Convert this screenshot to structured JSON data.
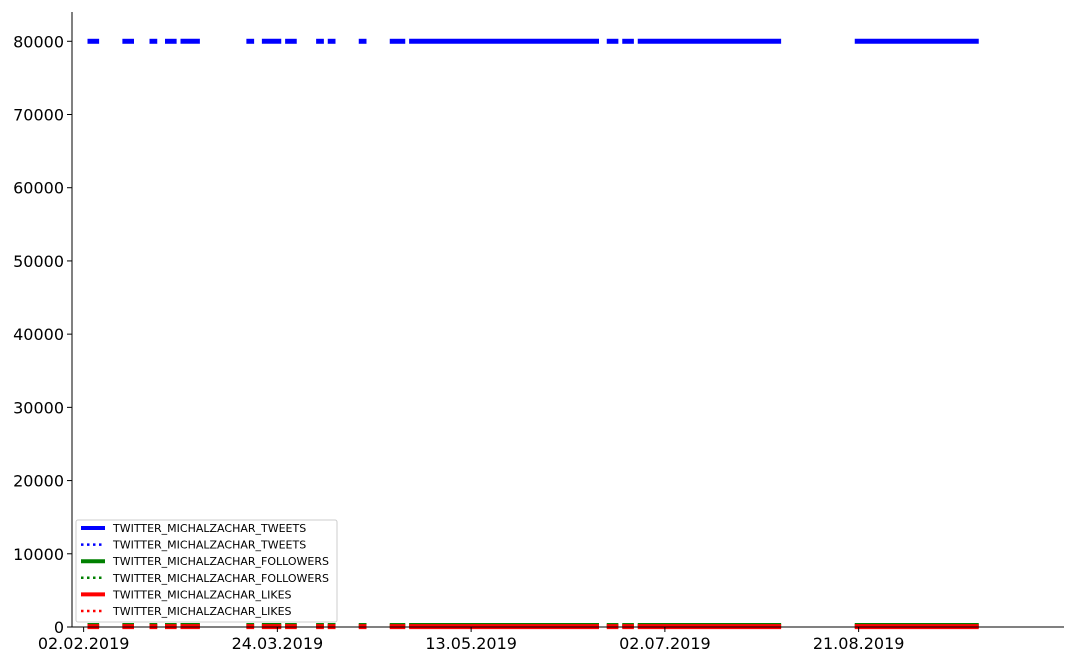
{
  "chart_data": {
    "type": "line",
    "title": "",
    "xlabel": "",
    "ylabel": "",
    "x_axis": {
      "type": "date",
      "range": [
        "2019-01-30",
        "2019-10-13"
      ],
      "ticks": [
        "2019-02-02",
        "2019-03-24",
        "2019-05-13",
        "2019-07-02",
        "2019-08-21"
      ],
      "tick_labels": [
        "02.02.2019",
        "24.03.2019",
        "13.05.2019",
        "02.07.2019",
        "21.08.2019"
      ]
    },
    "y_axis": {
      "range": [
        0,
        84000
      ],
      "ticks": [
        0,
        10000,
        20000,
        30000,
        40000,
        50000,
        60000,
        70000,
        80000
      ],
      "tick_labels": [
        "0",
        "10000",
        "20000",
        "30000",
        "40000",
        "50000",
        "60000",
        "70000",
        "80000"
      ]
    },
    "grid": false,
    "legend": {
      "placement": "lower-left",
      "entries": [
        {
          "label": "TWITTER_MICHALZACHAR_TWEETS",
          "color": "#0000ff",
          "style": "solid"
        },
        {
          "label": "TWITTER_MICHALZACHAR_TWEETS",
          "color": "#0000ff",
          "style": "dotted"
        },
        {
          "label": "TWITTER_MICHALZACHAR_FOLLOWERS",
          "color": "#008000",
          "style": "solid"
        },
        {
          "label": "TWITTER_MICHALZACHAR_FOLLOWERS",
          "color": "#008000",
          "style": "dotted"
        },
        {
          "label": "TWITTER_MICHALZACHAR_LIKES",
          "color": "#ff0000",
          "style": "solid"
        },
        {
          "label": "TWITTER_MICHALZACHAR_LIKES",
          "color": "#ff0000",
          "style": "dotted"
        }
      ]
    },
    "series": [
      {
        "name": "TWITTER_MICHALZACHAR_TWEETS",
        "color": "#0000ff",
        "style": "solid",
        "value": 80000,
        "segments": [
          [
            "2019-02-03",
            "2019-02-06"
          ],
          [
            "2019-02-12",
            "2019-02-15"
          ],
          [
            "2019-02-19",
            "2019-02-21"
          ],
          [
            "2019-02-23",
            "2019-02-26"
          ],
          [
            "2019-02-27",
            "2019-03-04"
          ],
          [
            "2019-03-16",
            "2019-03-18"
          ],
          [
            "2019-03-20",
            "2019-03-25"
          ],
          [
            "2019-03-26",
            "2019-03-29"
          ],
          [
            "2019-04-03",
            "2019-04-05"
          ],
          [
            "2019-04-06",
            "2019-04-08"
          ],
          [
            "2019-04-14",
            "2019-04-16"
          ],
          [
            "2019-04-22",
            "2019-04-26"
          ],
          [
            "2019-04-27",
            "2019-06-15"
          ],
          [
            "2019-06-17",
            "2019-06-20"
          ],
          [
            "2019-06-21",
            "2019-06-24"
          ],
          [
            "2019-06-25",
            "2019-08-01"
          ],
          [
            "2019-08-20",
            "2019-09-21"
          ]
        ]
      },
      {
        "name": "TWITTER_MICHALZACHAR_FOLLOWERS",
        "color": "#008000",
        "style": "solid",
        "value": 200,
        "segments": [
          [
            "2019-02-03",
            "2019-02-06"
          ],
          [
            "2019-02-12",
            "2019-02-15"
          ],
          [
            "2019-02-19",
            "2019-02-21"
          ],
          [
            "2019-02-23",
            "2019-02-26"
          ],
          [
            "2019-02-27",
            "2019-03-04"
          ],
          [
            "2019-03-16",
            "2019-03-18"
          ],
          [
            "2019-03-20",
            "2019-03-25"
          ],
          [
            "2019-03-26",
            "2019-03-29"
          ],
          [
            "2019-04-03",
            "2019-04-05"
          ],
          [
            "2019-04-06",
            "2019-04-08"
          ],
          [
            "2019-04-14",
            "2019-04-16"
          ],
          [
            "2019-04-22",
            "2019-04-26"
          ],
          [
            "2019-04-27",
            "2019-06-15"
          ],
          [
            "2019-06-17",
            "2019-06-20"
          ],
          [
            "2019-06-21",
            "2019-06-24"
          ],
          [
            "2019-06-25",
            "2019-08-01"
          ],
          [
            "2019-08-20",
            "2019-09-21"
          ]
        ]
      },
      {
        "name": "TWITTER_MICHALZACHAR_LIKES",
        "color": "#ff0000",
        "style": "solid",
        "value": 50,
        "segments": [
          [
            "2019-02-03",
            "2019-02-06"
          ],
          [
            "2019-02-12",
            "2019-02-15"
          ],
          [
            "2019-02-19",
            "2019-02-21"
          ],
          [
            "2019-02-23",
            "2019-02-26"
          ],
          [
            "2019-02-27",
            "2019-03-04"
          ],
          [
            "2019-03-16",
            "2019-03-18"
          ],
          [
            "2019-03-20",
            "2019-03-25"
          ],
          [
            "2019-03-26",
            "2019-03-29"
          ],
          [
            "2019-04-03",
            "2019-04-05"
          ],
          [
            "2019-04-06",
            "2019-04-08"
          ],
          [
            "2019-04-14",
            "2019-04-16"
          ],
          [
            "2019-04-22",
            "2019-04-26"
          ],
          [
            "2019-04-27",
            "2019-06-15"
          ],
          [
            "2019-06-17",
            "2019-06-20"
          ],
          [
            "2019-06-21",
            "2019-06-24"
          ],
          [
            "2019-06-25",
            "2019-08-01"
          ],
          [
            "2019-08-20",
            "2019-09-21"
          ]
        ]
      }
    ]
  }
}
